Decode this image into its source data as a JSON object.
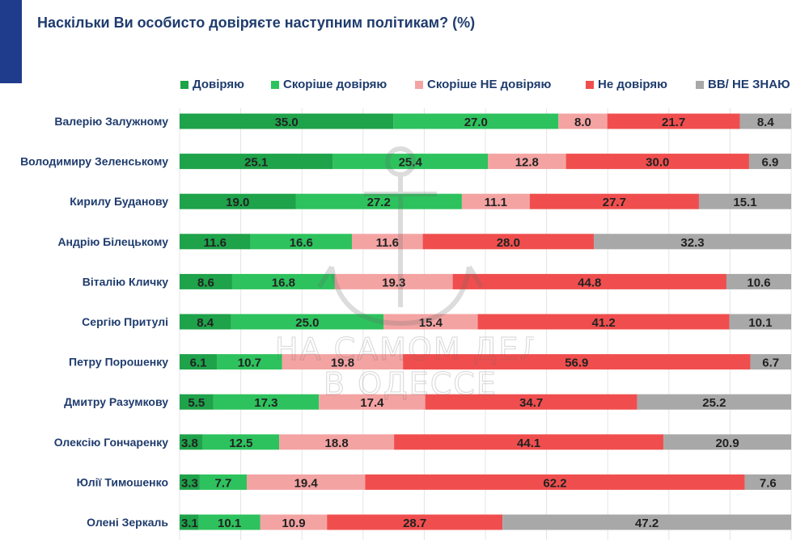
{
  "title": "Наскільки Ви особисто довіряєте наступним політикам? (%)",
  "watermark": {
    "line1": "НА САМОМ ДЕЛЕ",
    "line2": "В ОДЕССЕ"
  },
  "chart_data": {
    "type": "bar",
    "stacked": true,
    "orientation": "horizontal",
    "title": "Наскільки Ви особисто довіряєте наступним політикам? (%)",
    "legend_position": "top",
    "grid": true,
    "xlim": [
      0,
      100
    ],
    "categories": [
      "Валерію Залужному",
      "Володимиру Зеленському",
      "Кирилу Буданову",
      "Андрію Білецькому",
      "Віталію Кличку",
      "Сергію Притулі",
      "Петру Порошенку",
      "Дмитру Разумкову",
      "Олексію Гончаренку",
      "Юлії Тимошенко",
      "Олені Зеркаль"
    ],
    "series": [
      {
        "name": "Довіряю",
        "color": "#1ea24a",
        "values": [
          35.0,
          25.1,
          19.0,
          11.6,
          8.6,
          8.4,
          6.1,
          5.5,
          3.8,
          3.3,
          3.1
        ]
      },
      {
        "name": "Скоріше довіряю",
        "color": "#2dc25d",
        "values": [
          27.0,
          25.4,
          27.2,
          16.6,
          16.8,
          25.0,
          10.7,
          17.3,
          12.5,
          7.7,
          10.1
        ]
      },
      {
        "name": "Скоріше НЕ довіряю",
        "color": "#f4a3a3",
        "values": [
          8.0,
          12.8,
          11.1,
          11.6,
          19.3,
          15.4,
          19.8,
          17.4,
          18.8,
          19.4,
          10.9
        ]
      },
      {
        "name": "Не довіряю",
        "color": "#f04e4e",
        "values": [
          21.7,
          30.0,
          27.7,
          28.0,
          44.8,
          41.2,
          56.9,
          34.7,
          44.1,
          62.2,
          28.7
        ]
      },
      {
        "name": "ВВ/ НЕ ЗНАЮ",
        "color": "#a8a8a8",
        "values": [
          8.4,
          6.9,
          15.1,
          32.3,
          10.6,
          10.1,
          6.7,
          25.2,
          20.9,
          7.6,
          47.2
        ]
      }
    ]
  }
}
